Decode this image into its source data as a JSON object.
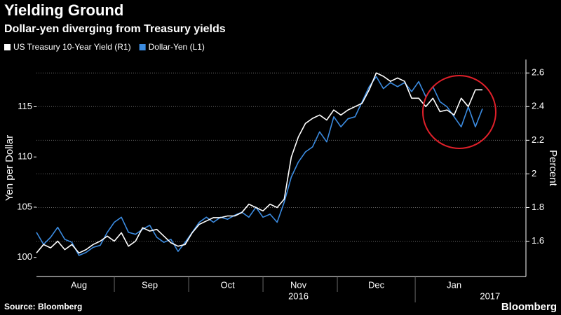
{
  "chart_data": {
    "type": "line",
    "title": "Yielding Ground",
    "subtitle": "Dollar-yen diverging from Treasury yields",
    "source": "Source: Bloomberg",
    "logo": "Bloomberg",
    "y_label": "Yen per Dollar",
    "y2_label": "Percent",
    "legend": "top-left",
    "grid": true,
    "categories": [
      null,
      null,
      null,
      null,
      null,
      null,
      "Aug",
      null,
      null,
      null,
      null,
      null,
      null,
      null,
      null,
      null,
      "Sep",
      null,
      null,
      null,
      null,
      null,
      null,
      null,
      null,
      null,
      null,
      "Oct",
      null,
      null,
      null,
      null,
      null,
      null,
      null,
      null,
      null,
      "Nov",
      null,
      null,
      null,
      null,
      null,
      null,
      null,
      null,
      null,
      null,
      "Dec",
      null,
      null,
      null,
      null,
      null,
      null,
      null,
      null,
      null,
      null,
      "Jan",
      null,
      null,
      null,
      null
    ],
    "year_labels": [
      "2016",
      "2017"
    ],
    "ylim": [
      98.1,
      119.7
    ],
    "yticks": [
      100,
      105,
      110,
      115
    ],
    "y2lim": [
      1.39,
      2.68
    ],
    "y2ticks": [
      1.6,
      1.8,
      2.0,
      2.2,
      2.4,
      2.6
    ],
    "series": [
      {
        "name": "US Treasury 10-Year Yield (R1)",
        "color": "#ffffff",
        "axis": "y2",
        "values": [
          1.53,
          1.58,
          1.56,
          1.6,
          1.55,
          1.58,
          1.53,
          1.55,
          1.58,
          1.6,
          1.63,
          1.6,
          1.65,
          1.57,
          1.6,
          1.68,
          1.66,
          1.67,
          1.63,
          1.59,
          1.57,
          1.58,
          1.65,
          1.7,
          1.72,
          1.74,
          1.74,
          1.75,
          1.75,
          1.77,
          1.82,
          1.8,
          1.78,
          1.82,
          1.8,
          1.85,
          2.1,
          2.22,
          2.3,
          2.33,
          2.35,
          2.32,
          2.38,
          2.35,
          2.38,
          2.4,
          2.42,
          2.5,
          2.6,
          2.58,
          2.55,
          2.57,
          2.55,
          2.45,
          2.45,
          2.4,
          2.45,
          2.37,
          2.38,
          2.35,
          2.45,
          2.4,
          2.5,
          2.5
        ]
      },
      {
        "name": "Dollar-Yen (L1)",
        "color": "#3b8be0",
        "axis": "y",
        "values": [
          102.5,
          101.3,
          102.0,
          103.0,
          101.8,
          101.5,
          100.2,
          100.5,
          101.0,
          101.2,
          102.5,
          103.5,
          104.0,
          102.5,
          102.3,
          102.8,
          103.2,
          102.0,
          101.5,
          101.8,
          100.6,
          101.5,
          102.5,
          103.5,
          104.0,
          103.5,
          104.0,
          103.8,
          104.2,
          104.5,
          104.0,
          105.0,
          104.0,
          104.3,
          103.5,
          105.5,
          108.0,
          109.5,
          110.5,
          111.0,
          112.5,
          111.5,
          114.0,
          113.0,
          113.8,
          114.0,
          115.5,
          117.0,
          118.0,
          116.8,
          117.4,
          117.0,
          117.4,
          116.5,
          117.5,
          116.0,
          117.0,
          115.5,
          115.0,
          114.0,
          113.0,
          115.0,
          113.0,
          114.8
        ]
      }
    ]
  }
}
